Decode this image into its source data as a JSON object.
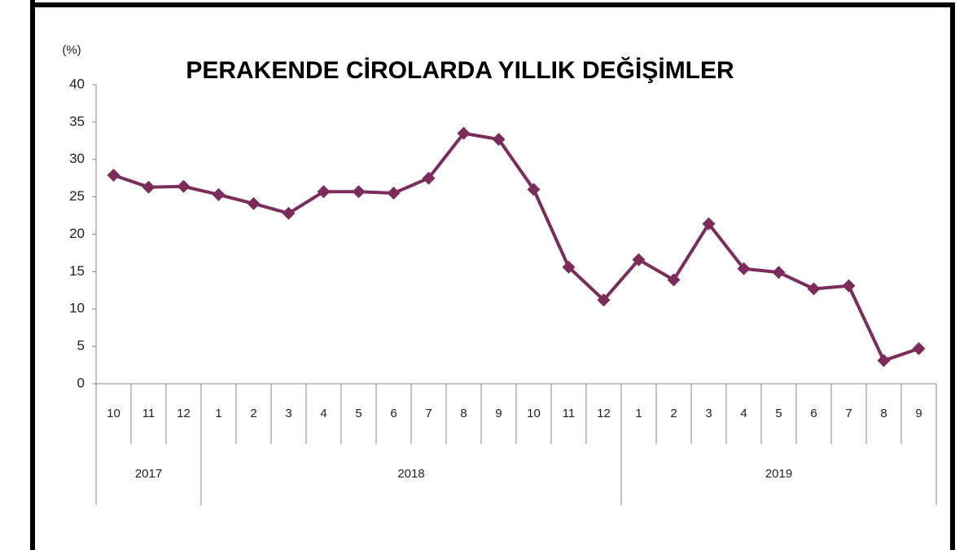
{
  "chart_data": {
    "type": "line",
    "title": "PERAKENDE CİROLARDA YILLIK DEĞİŞİMLER",
    "y_label": "(%)",
    "categories": [
      "10",
      "11",
      "12",
      "1",
      "2",
      "3",
      "4",
      "5",
      "6",
      "7",
      "8",
      "9",
      "10",
      "11",
      "12",
      "1",
      "2",
      "3",
      "4",
      "5",
      "6",
      "7",
      "8",
      "9"
    ],
    "groups": [
      {
        "label": "2017",
        "size": 3
      },
      {
        "label": "2018",
        "size": 12
      },
      {
        "label": "2019",
        "size": 9
      }
    ],
    "values": [
      27.9,
      26.3,
      26.4,
      25.3,
      24.1,
      22.8,
      25.7,
      25.7,
      25.5,
      27.5,
      33.5,
      32.7,
      26.0,
      15.6,
      11.2,
      16.6,
      13.9,
      21.4,
      15.4,
      14.9,
      12.7,
      13.1,
      3.1,
      4.7
    ],
    "color": "#7b2c5a",
    "ylim": [
      0,
      40
    ],
    "yticks": [
      0,
      5,
      10,
      15,
      20,
      25,
      30,
      35,
      40
    ]
  }
}
